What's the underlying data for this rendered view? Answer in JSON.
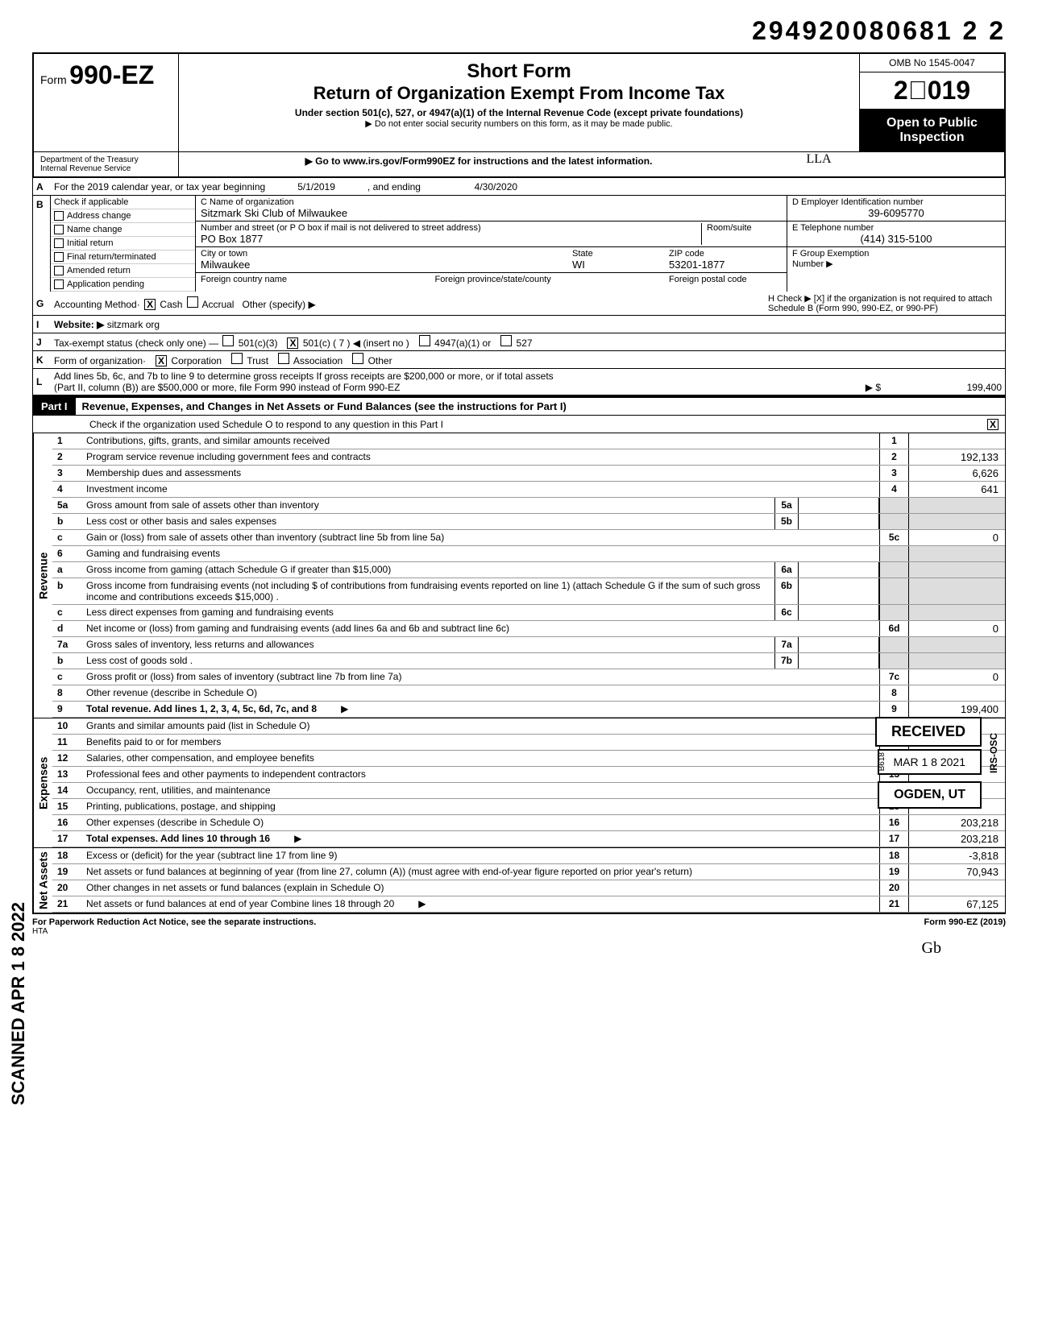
{
  "doc_number": "294920080681 2  2",
  "form": {
    "prefix": "Form",
    "number": "990-EZ",
    "short": "Short Form",
    "title": "Return of Organization Exempt From Income Tax",
    "sub1": "Under section 501(c), 527, or 4947(a)(1) of the Internal Revenue Code (except private foundations)",
    "sub2": "Do not enter social security numbers on this form, as it may be made public.",
    "sub3": "Go to www.irs.gov/Form990EZ for instructions and the latest information.",
    "omb": "OMB No 1545-0047",
    "year": "2019",
    "open": "Open to Public",
    "inspection": "Inspection",
    "dept": "Department of the Treasury",
    "irs": "Internal Revenue Service",
    "signature": "LLA"
  },
  "lineA": {
    "text": "For the 2019 calendar year, or tax year beginning",
    "begin": "5/1/2019",
    "mid": ", and ending",
    "end": "4/30/2020"
  },
  "lineB": {
    "header": "Check if applicable",
    "items": [
      "Address change",
      "Name change",
      "Initial return",
      "Final return/terminated",
      "Amended return",
      "Application pending"
    ]
  },
  "org": {
    "name_label": "C  Name of organization",
    "name": "Sitzmark Ski Club of Milwaukee",
    "addr_label": "Number and street (or P O box if mail is not delivered to street address)",
    "addr": "PO Box 1877",
    "room_label": "Room/suite",
    "city_label": "City or town",
    "city": "Milwaukee",
    "state_label": "State",
    "state": "WI",
    "zip_label": "ZIP code",
    "zip": "53201-1877",
    "foreign_label": "Foreign country name",
    "foreign_prov": "Foreign province/state/county",
    "foreign_postal": "Foreign postal code"
  },
  "idblock": {
    "d_label": "D  Employer Identification number",
    "d_val": "39-6095770",
    "e_label": "E  Telephone number",
    "e_val": "(414) 315-5100",
    "f_label": "F  Group Exemption",
    "f_sub": "Number ▶"
  },
  "lineG": {
    "label": "Accounting Method·",
    "cash": "Cash",
    "accrual": "Accrual",
    "other": "Other (specify)"
  },
  "lineH": "H  Check ▶ [X] if the organization is not required to attach Schedule B (Form 990, 990-EZ, or 990-PF)",
  "lineI": {
    "label": "Website: ▶",
    "val": "sitzmark org"
  },
  "lineJ": {
    "label": "Tax-exempt status (check only one) —",
    "opt1": "501(c)(3)",
    "opt2": "501(c) (",
    "opt2n": "7",
    "opt2e": ") ◀ (insert no )",
    "opt3": "4947(a)(1) or",
    "opt4": "527"
  },
  "lineK": {
    "label": "Form of organization·",
    "corp": "Corporation",
    "trust": "Trust",
    "assoc": "Association",
    "other": "Other"
  },
  "lineL": {
    "text1": "Add lines 5b, 6c, and 7b to line 9 to determine gross receipts  If gross receipts are $200,000 or more, or if total assets",
    "text2": "(Part II, column (B)) are $500,000 or more, file Form 990 instead of Form 990-EZ",
    "arrow": "▶ $",
    "val": "199,400"
  },
  "part1": {
    "tab": "Part I",
    "title": "Revenue, Expenses, and Changes in Net Assets or Fund Balances (see the instructions for Part I)",
    "check": "Check if the organization used Schedule O to respond to any question in this Part I",
    "checkx": "X"
  },
  "rows": [
    {
      "n": "1",
      "d": "Contributions, gifts, grants, and similar amounts received",
      "rn": "1",
      "rv": ""
    },
    {
      "n": "2",
      "d": "Program service revenue including government fees and contracts",
      "rn": "2",
      "rv": "192,133"
    },
    {
      "n": "3",
      "d": "Membership dues and assessments",
      "rn": "3",
      "rv": "6,626"
    },
    {
      "n": "4",
      "d": "Investment income",
      "rn": "4",
      "rv": "641"
    },
    {
      "n": "5a",
      "d": "Gross amount from sale of assets other than inventory",
      "mn": "5a",
      "mv": "",
      "rn": "",
      "rv": "",
      "gray": true
    },
    {
      "n": "b",
      "d": "Less cost or other basis and sales expenses",
      "mn": "5b",
      "mv": "",
      "rn": "",
      "rv": "",
      "gray": true
    },
    {
      "n": "c",
      "d": "Gain or (loss) from sale of assets other than inventory (subtract line 5b from line 5a)",
      "rn": "5c",
      "rv": "0"
    },
    {
      "n": "6",
      "d": "Gaming and fundraising events",
      "rn": "",
      "rv": "",
      "gray": true
    },
    {
      "n": "a",
      "d": "Gross income from gaming (attach Schedule G if greater than $15,000)",
      "mn": "6a",
      "mv": "",
      "rn": "",
      "rv": "",
      "gray": true
    },
    {
      "n": "b",
      "d": "Gross income from fundraising events (not including    $                    of contributions from fundraising events reported on line 1) (attach Schedule G if the sum of such gross income and contributions exceeds $15,000) .",
      "mn": "6b",
      "mv": "",
      "rn": "",
      "rv": "",
      "gray": true
    },
    {
      "n": "c",
      "d": "Less direct expenses from gaming and fundraising events",
      "mn": "6c",
      "mv": "",
      "rn": "",
      "rv": "",
      "gray": true
    },
    {
      "n": "d",
      "d": "Net income or (loss) from gaming and fundraising events (add lines 6a and 6b and subtract line 6c)",
      "rn": "6d",
      "rv": "0"
    },
    {
      "n": "7a",
      "d": "Gross sales of inventory, less returns and allowances",
      "mn": "7a",
      "mv": "",
      "rn": "",
      "rv": "",
      "gray": true
    },
    {
      "n": "b",
      "d": "Less cost of goods sold .",
      "mn": "7b",
      "mv": "",
      "rn": "",
      "rv": "",
      "gray": true
    },
    {
      "n": "c",
      "d": "Gross profit or (loss) from sales of inventory (subtract line 7b from line 7a)",
      "rn": "7c",
      "rv": "0"
    },
    {
      "n": "8",
      "d": "Other revenue (describe in Schedule O)",
      "rn": "8",
      "rv": ""
    },
    {
      "n": "9",
      "d": "Total revenue. Add lines 1, 2, 3, 4, 5c, 6d, 7c, and 8",
      "rn": "9",
      "rv": "199,400",
      "bold": true,
      "arrow": true
    }
  ],
  "expense_rows": [
    {
      "n": "10",
      "d": "Grants and similar amounts paid (list in Schedule O)",
      "rn": "10",
      "rv": ""
    },
    {
      "n": "11",
      "d": "Benefits paid to or for members",
      "rn": "11",
      "rv": ""
    },
    {
      "n": "12",
      "d": "Salaries, other compensation, and employee benefits",
      "rn": "12",
      "rv": ""
    },
    {
      "n": "13",
      "d": "Professional fees and other payments to independent contractors",
      "rn": "13",
      "rv": ""
    },
    {
      "n": "14",
      "d": "Occupancy, rent, utilities, and maintenance",
      "rn": "14",
      "rv": ""
    },
    {
      "n": "15",
      "d": "Printing, publications, postage, and shipping",
      "rn": "15",
      "rv": ""
    },
    {
      "n": "16",
      "d": "Other expenses (describe in Schedule O)",
      "rn": "16",
      "rv": "203,218"
    },
    {
      "n": "17",
      "d": "Total expenses. Add lines 10 through 16",
      "rn": "17",
      "rv": "203,218",
      "bold": true,
      "arrow": true
    }
  ],
  "net_rows": [
    {
      "n": "18",
      "d": "Excess or (deficit) for the year (subtract line 17 from line 9)",
      "rn": "18",
      "rv": "-3,818"
    },
    {
      "n": "19",
      "d": "Net assets or fund balances at beginning of year (from line 27, column (A)) (must agree with end-of-year figure reported on prior year's return)",
      "rn": "19",
      "rv": "70,943"
    },
    {
      "n": "20",
      "d": "Other changes in net assets or fund balances (explain in Schedule O)",
      "rn": "20",
      "rv": ""
    },
    {
      "n": "21",
      "d": "Net assets or fund balances at end of year  Combine lines 18 through 20",
      "rn": "21",
      "rv": "67,125",
      "arrow": true
    }
  ],
  "side_labels": {
    "revenue": "Revenue",
    "expenses": "Expenses",
    "net": "Net Assets"
  },
  "stamps": {
    "received": "RECEIVED",
    "date": "MAR 1 8 2021",
    "ogden": "OGDEN, UT",
    "b618": "B618",
    "irsosc": "IRS-OSC",
    "scanned": "SCANNED APR 1 8 2022"
  },
  "footer": {
    "left": "For Paperwork Reduction Act Notice, see the separate instructions.",
    "hta": "HTA",
    "right": "Form 990-EZ (2019)",
    "sig": "Gb"
  }
}
